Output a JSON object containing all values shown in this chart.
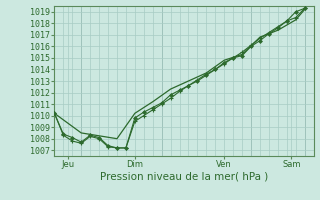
{
  "xlabel": "Pression niveau de la mer( hPa )",
  "bg_color": "#cce8e0",
  "grid_color_major": "#b0d4cc",
  "grid_color_minor": "#b0d4cc",
  "plot_bg": "#cce8e0",
  "line_color": "#2d6a2d",
  "xlim": [
    0,
    29
  ],
  "ylim": [
    1006.5,
    1019.5
  ],
  "yticks": [
    1007,
    1008,
    1009,
    1010,
    1011,
    1012,
    1013,
    1014,
    1015,
    1016,
    1017,
    1018,
    1019
  ],
  "xtick_positions": [
    1.5,
    9,
    19,
    26.5
  ],
  "xtick_labels": [
    "Jeu",
    "Dim",
    "Ven",
    "Sam"
  ],
  "vlines": [
    3,
    12,
    22,
    28
  ],
  "line1_x": [
    0,
    1,
    2,
    3,
    4,
    5,
    6,
    7,
    8,
    9,
    10,
    11,
    12,
    13,
    14,
    15,
    16,
    17,
    18,
    19,
    20,
    21,
    22,
    23,
    24,
    25,
    26,
    27,
    28
  ],
  "line1_y": [
    1010.2,
    1008.3,
    1007.8,
    1007.6,
    1008.2,
    1008.0,
    1007.3,
    1007.2,
    1007.2,
    1009.5,
    1010.0,
    1010.5,
    1011.0,
    1011.5,
    1012.1,
    1012.6,
    1013.1,
    1013.6,
    1014.0,
    1014.5,
    1015.0,
    1015.5,
    1016.1,
    1016.7,
    1017.2,
    1017.7,
    1018.2,
    1018.5,
    1019.3
  ],
  "line2_x": [
    0,
    1,
    2,
    3,
    4,
    5,
    6,
    7,
    8,
    9,
    10,
    11,
    12,
    13,
    14,
    15,
    16,
    17,
    18,
    19,
    20,
    21,
    22,
    23,
    24,
    25,
    26,
    27,
    28
  ],
  "line2_y": [
    1010.2,
    1008.4,
    1008.1,
    1007.7,
    1008.3,
    1008.1,
    1007.4,
    1007.2,
    1007.2,
    1009.8,
    1010.3,
    1010.7,
    1011.1,
    1011.8,
    1012.2,
    1012.6,
    1013.0,
    1013.5,
    1014.0,
    1014.6,
    1015.0,
    1015.2,
    1016.0,
    1016.5,
    1017.1,
    1017.6,
    1018.2,
    1019.0,
    1019.3
  ],
  "line3_x": [
    0,
    3,
    7,
    9,
    11,
    13,
    15,
    17,
    19,
    21,
    23,
    25,
    27,
    28
  ],
  "line3_y": [
    1010.2,
    1008.5,
    1008.0,
    1010.2,
    1011.2,
    1012.3,
    1013.0,
    1013.7,
    1014.8,
    1015.3,
    1016.8,
    1017.4,
    1018.3,
    1019.2
  ]
}
